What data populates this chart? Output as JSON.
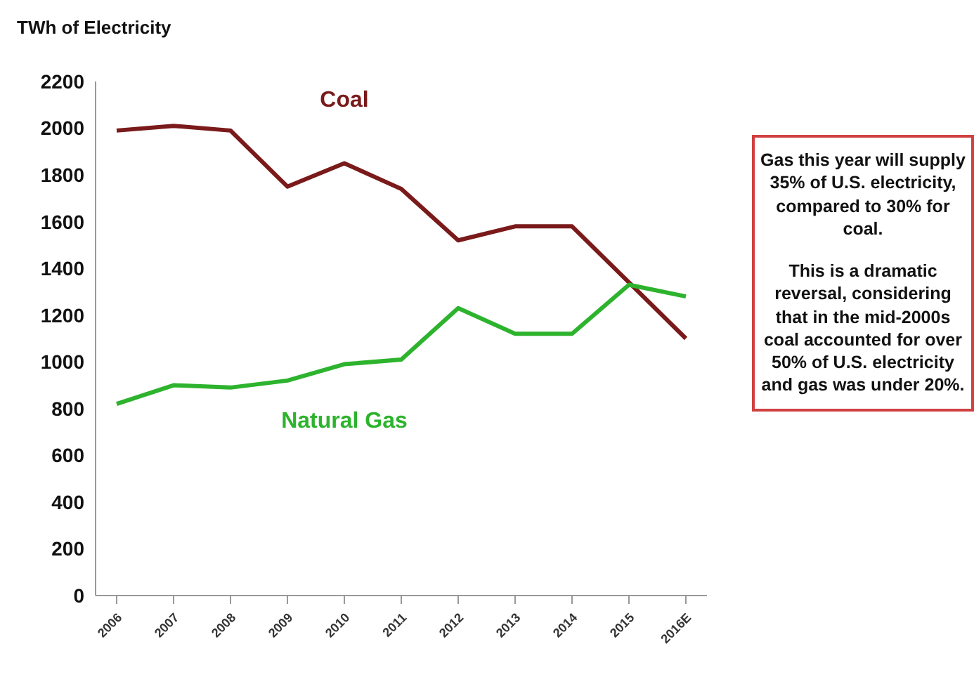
{
  "chart_data": {
    "type": "line",
    "ylabel": "TWh of Electricity",
    "categories": [
      "2006",
      "2007",
      "2008",
      "2009",
      "2010",
      "2011",
      "2012",
      "2013",
      "2014",
      "2015",
      "2016E"
    ],
    "series": [
      {
        "name": "Coal",
        "color": "#7a1a1a",
        "values": [
          1990,
          2010,
          1990,
          1750,
          1850,
          1740,
          1520,
          1580,
          1580,
          1340,
          1100
        ]
      },
      {
        "name": "Natural Gas",
        "color": "#2db32d",
        "values": [
          820,
          900,
          890,
          920,
          990,
          1010,
          1230,
          1120,
          1120,
          1330,
          1280
        ]
      }
    ],
    "ylim": [
      0,
      2200
    ],
    "yticks": [
      0,
      200,
      400,
      600,
      800,
      1000,
      1200,
      1400,
      1600,
      1800,
      2000,
      2200
    ],
    "grid": false,
    "legend": false,
    "marker": "none",
    "line_style": "solid",
    "annotations": [
      "Gas this year will supply 35% of U.S. electricity, compared to 30% for coal.",
      "This is a dramatic reversal, considering that in the mid-2000s coal accounted for over 50% of U.S. electricity and gas was under 20%."
    ]
  }
}
